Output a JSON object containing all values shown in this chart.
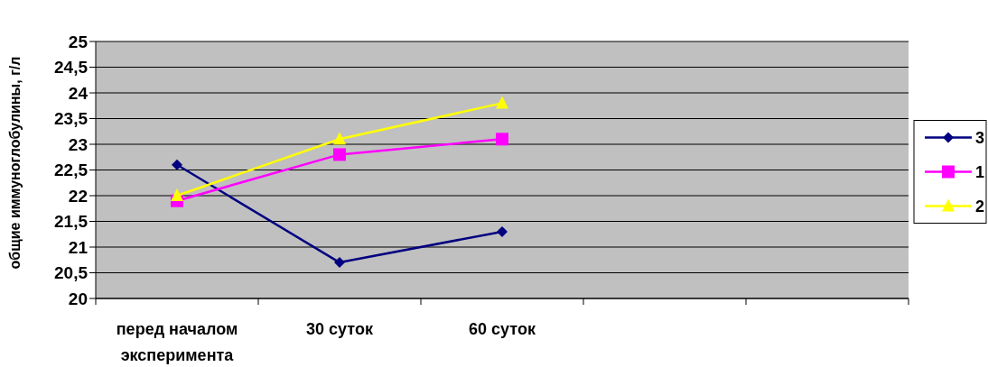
{
  "chart_data": {
    "type": "line",
    "ylabel": "общие иммуноглобулины, г/л",
    "categories": [
      "перед началом эксперимента",
      "30 суток",
      "60 суток",
      null,
      null
    ],
    "series": [
      {
        "name": "3",
        "color": "#000080",
        "marker": "diamond",
        "values": [
          22.6,
          20.7,
          21.3,
          null,
          null
        ]
      },
      {
        "name": "1",
        "color": "#ff00ff",
        "marker": "square",
        "values": [
          21.9,
          22.8,
          23.1,
          null,
          null
        ]
      },
      {
        "name": "2",
        "color": "#ffff00",
        "marker": "triangle",
        "values": [
          22.0,
          23.1,
          23.8,
          null,
          null
        ]
      }
    ],
    "ylim": [
      20,
      25
    ],
    "yticks": [
      20,
      {
        "value": 20.5,
        "label": "20,5"
      },
      21,
      {
        "value": 21.5,
        "label": "21,5"
      },
      22,
      {
        "value": 22.5,
        "label": "22,5"
      },
      23,
      {
        "value": 23.5,
        "label": "23,5"
      },
      24,
      {
        "value": 24.5,
        "label": "24,5"
      },
      25
    ],
    "grid": "y",
    "legend": "right",
    "line_style": "solid"
  }
}
